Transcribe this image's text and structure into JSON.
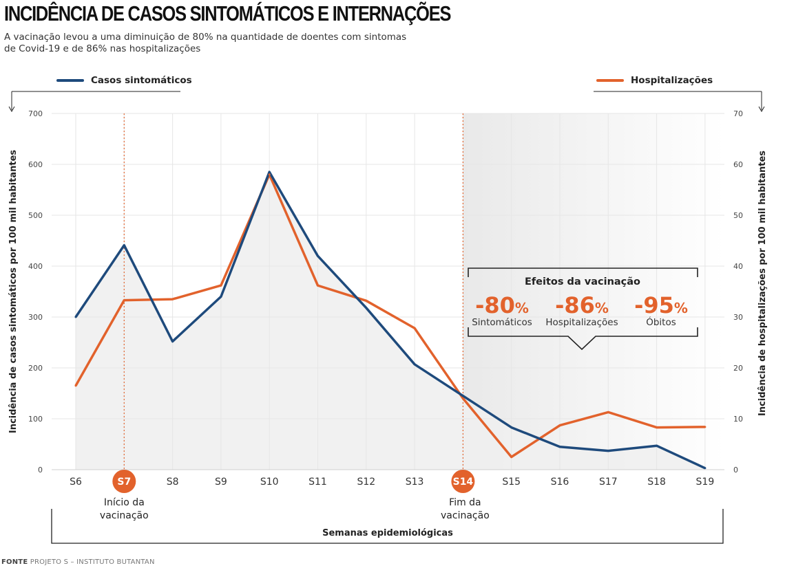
{
  "header": {
    "title": "INCIDÊNCIA DE CASOS SINTOMÁTICOS E INTERNAÇÕES",
    "subtitle": "A vacinação levou a uma diminuição de 80% na quantidade de doentes com sintomas de Covid-19 e de 86% nas hospitalizações"
  },
  "legend": {
    "cases": "Casos sintomáticos",
    "hosp": "Hospitalizações"
  },
  "colors": {
    "cases": "#1e4a7c",
    "hosp": "#e2622c",
    "grid": "#e6e6e6",
    "area": "#efefef"
  },
  "annotations": {
    "start_label": [
      "Início da",
      "vacinação"
    ],
    "end_label": [
      "Fim da",
      "vacinação"
    ],
    "effects_title": "Efeitos da vacinação",
    "effects": [
      {
        "value": "-80",
        "unit": "%",
        "label": "Sintomáticos"
      },
      {
        "value": "-86",
        "unit": "%",
        "label": "Hospitalizações"
      },
      {
        "value": "-95",
        "unit": "%",
        "label": "Óbitos"
      }
    ]
  },
  "source": {
    "label": "FONTE",
    "text": "PROJETO S – INSTITUTO BUTANTAN"
  },
  "chart_data": {
    "type": "line",
    "categories": [
      "S6",
      "S7",
      "S8",
      "S9",
      "S10",
      "S11",
      "S12",
      "S13",
      "S14",
      "S15",
      "S16",
      "S17",
      "S18",
      "S19"
    ],
    "highlighted_categories": [
      "S7",
      "S14"
    ],
    "xlabel": "Semanas epidemiológicas",
    "ylabel_left": "Incidência de casos sintomáticos por 100 mil habitantes",
    "ylabel_right": "Incidência de hospitalizações por 100 mil habitantes",
    "ylim_left": [
      0,
      700
    ],
    "ylim_right": [
      0,
      70
    ],
    "yticks_left": [
      0,
      100,
      200,
      300,
      400,
      500,
      600,
      700
    ],
    "yticks_right": [
      0,
      10,
      20,
      30,
      40,
      50,
      60,
      70
    ],
    "grid": true,
    "legend_position": "top",
    "series": [
      {
        "name": "Casos sintomáticos",
        "axis": "left",
        "values": [
          300,
          441,
          252,
          340,
          585,
          420,
          318,
          207,
          145,
          83,
          45,
          37,
          47,
          3
        ]
      },
      {
        "name": "Hospitalizações",
        "axis": "right",
        "values": [
          16.5,
          33.3,
          33.5,
          36.2,
          58.0,
          36.2,
          33.2,
          27.8,
          14.0,
          2.5,
          8.7,
          11.3,
          8.3,
          8.4
        ]
      }
    ]
  }
}
